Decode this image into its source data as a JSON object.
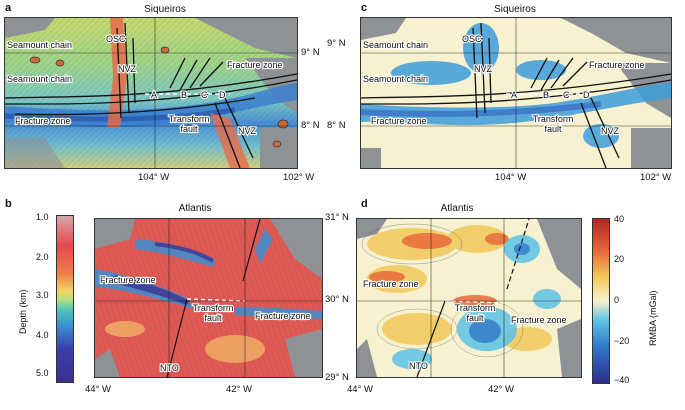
{
  "colors": {
    "gray": "#8e9196",
    "deep": "#3b2f8f",
    "mid": "#3b8fd3",
    "shallow": "#e23a3a",
    "cream": "#f7f1cf"
  },
  "panel_a": {
    "label": "a",
    "title": "Siqueiros",
    "lat_ticks": [
      "9° N",
      "8° N"
    ],
    "lon_ticks": [
      "104° W",
      "102° W"
    ],
    "annotations": {
      "seamount1": "Seamount chain",
      "seamount2": "Seamount chain",
      "osc": "OSC",
      "nvz": "NVZ",
      "fracture_right": "Fracture zone",
      "fracture_left": "Fracture zone",
      "transform1": "Transform",
      "transform2": "fault",
      "nvz2": "NVZ",
      "a": "A",
      "b": "B",
      "c": "C",
      "d": "D"
    }
  },
  "panel_c": {
    "label": "c",
    "title": "Siqueiros",
    "lat_ticks": [
      "9° N",
      "8° N"
    ],
    "lon_ticks": [
      "104° W",
      "102° W"
    ]
  },
  "panel_b": {
    "label": "b",
    "title": "Atlantis",
    "lat_ticks": [
      "31° N",
      "30° N",
      "29° N"
    ],
    "lon_ticks": [
      "44° W",
      "42° W"
    ],
    "annotations": {
      "fracture_left": "Fracture zone",
      "transform1": "Transform",
      "transform2": "fault",
      "fracture_right": "Fracture zone",
      "nto": "NTO"
    }
  },
  "panel_d": {
    "label": "d",
    "title": "Atlantis",
    "lat_ticks": [
      "31° N",
      "30° N",
      "29° N"
    ],
    "lon_ticks": [
      "44° W",
      "42° W"
    ]
  },
  "depth_bar": {
    "title": "Depth (km)",
    "ticks": [
      "1.0",
      "2.0",
      "3.0",
      "4.0",
      "5.0"
    ]
  },
  "rmba_bar": {
    "title": "RMBA (mGal)",
    "ticks": [
      "40",
      "20",
      "0",
      "−20",
      "−40"
    ]
  }
}
